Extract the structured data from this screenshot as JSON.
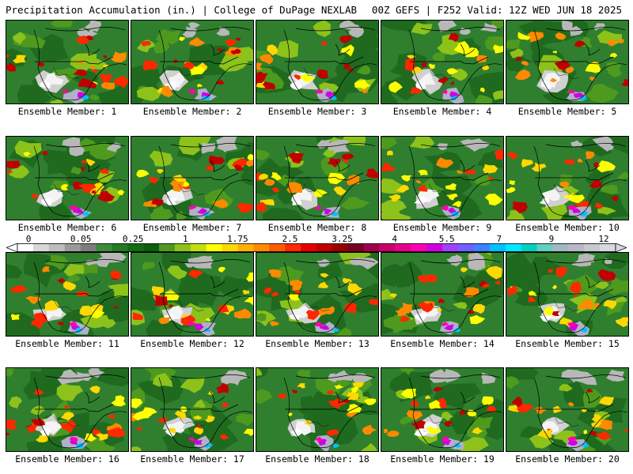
{
  "header": {
    "left": "Precipitation Accumulation (in.) | College of DuPage NEXLAB",
    "right": "00Z GEFS | F252 Valid: 12Z WED JUN 18 2025"
  },
  "panels": [
    {
      "label": "Ensemble Member: 1"
    },
    {
      "label": "Ensemble Member: 2"
    },
    {
      "label": "Ensemble Member: 3"
    },
    {
      "label": "Ensemble Member: 4"
    },
    {
      "label": "Ensemble Member: 5"
    },
    {
      "label": "Ensemble Member: 6"
    },
    {
      "label": "Ensemble Member: 7"
    },
    {
      "label": "Ensemble Member: 8"
    },
    {
      "label": "Ensemble Member: 9"
    },
    {
      "label": "Ensemble Member: 10"
    },
    {
      "label": "Ensemble Member: 11"
    },
    {
      "label": "Ensemble Member: 12"
    },
    {
      "label": "Ensemble Member: 13"
    },
    {
      "label": "Ensemble Member: 14"
    },
    {
      "label": "Ensemble Member: 15"
    },
    {
      "label": "Ensemble Member: 16"
    },
    {
      "label": "Ensemble Member: 17"
    },
    {
      "label": "Ensemble Member: 18"
    },
    {
      "label": "Ensemble Member: 19"
    },
    {
      "label": "Ensemble Member: 20"
    }
  ],
  "colorbar": {
    "ticks": [
      "0",
      "0.05",
      "0.25",
      "1",
      "1.75",
      "2.5",
      "3.25",
      "4",
      "5.5",
      "7",
      "9",
      "12"
    ],
    "colors": [
      "#ffffff",
      "#d8d8d8",
      "#bdbdbd",
      "#9a9a9a",
      "#7d7d7d",
      "#3c8a3c",
      "#237a23",
      "#136b13",
      "#0b5e0b",
      "#4e9a1f",
      "#8cc21a",
      "#c2de10",
      "#ffff00",
      "#ffd800",
      "#ffb000",
      "#ff8a00",
      "#ff5a00",
      "#ff2800",
      "#e80000",
      "#c00000",
      "#980000",
      "#7a0020",
      "#a0004c",
      "#c8006c",
      "#e8008c",
      "#ff00b0",
      "#d000e0",
      "#a040ff",
      "#7060ff",
      "#4080ff",
      "#00c0ff",
      "#00e8ff",
      "#00d0c0",
      "#60d0c0",
      "#a0b8c0",
      "#b8b8c8",
      "#c8c8d0",
      "#d8d8e0"
    ]
  }
}
